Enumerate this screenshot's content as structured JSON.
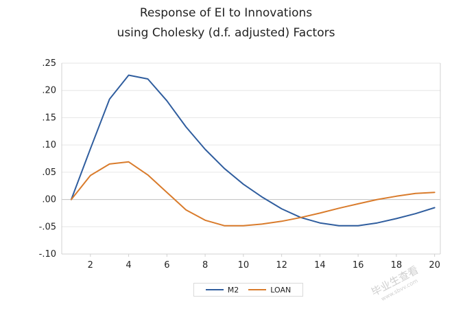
{
  "chart_data": {
    "type": "line",
    "title_line1": "Response of EI to Innovations",
    "title_line2": "using Cholesky (d.f. adjusted) Factors",
    "x": [
      1,
      2,
      3,
      4,
      5,
      6,
      7,
      8,
      9,
      10,
      11,
      12,
      13,
      14,
      15,
      16,
      17,
      18,
      19,
      20
    ],
    "xticks": [
      2,
      4,
      6,
      8,
      10,
      12,
      14,
      16,
      18,
      20
    ],
    "xtick_labels": [
      "2",
      "4",
      "6",
      "8",
      "10",
      "12",
      "14",
      "16",
      "18",
      "20"
    ],
    "xlim": [
      0.5,
      20.3
    ],
    "ylim": [
      -0.1,
      0.25
    ],
    "yticks": [
      -0.1,
      -0.05,
      0.0,
      0.05,
      0.1,
      0.15,
      0.2,
      0.25
    ],
    "ytick_labels": [
      "-.10",
      "-.05",
      ".00",
      ".05",
      ".10",
      ".15",
      ".20",
      ".25"
    ],
    "grid": "horizontal",
    "legend_position": "bottom-center",
    "series": [
      {
        "name": "M2",
        "color": "#2f5d9e",
        "values": [
          0.0,
          0.093,
          0.184,
          0.228,
          0.221,
          0.181,
          0.133,
          0.092,
          0.057,
          0.028,
          0.004,
          -0.017,
          -0.033,
          -0.043,
          -0.048,
          -0.048,
          -0.043,
          -0.035,
          -0.026,
          -0.015
        ]
      },
      {
        "name": "LOAN",
        "color": "#d97b2b",
        "values": [
          0.0,
          0.044,
          0.065,
          0.069,
          0.045,
          0.013,
          -0.019,
          -0.038,
          -0.048,
          -0.048,
          -0.045,
          -0.04,
          -0.033,
          -0.025,
          -0.016,
          -0.008,
          0.0,
          0.006,
          0.011,
          0.013
        ]
      }
    ]
  },
  "watermark": {
    "text": "毕业生查看",
    "sub": "www.sbvv.com"
  }
}
